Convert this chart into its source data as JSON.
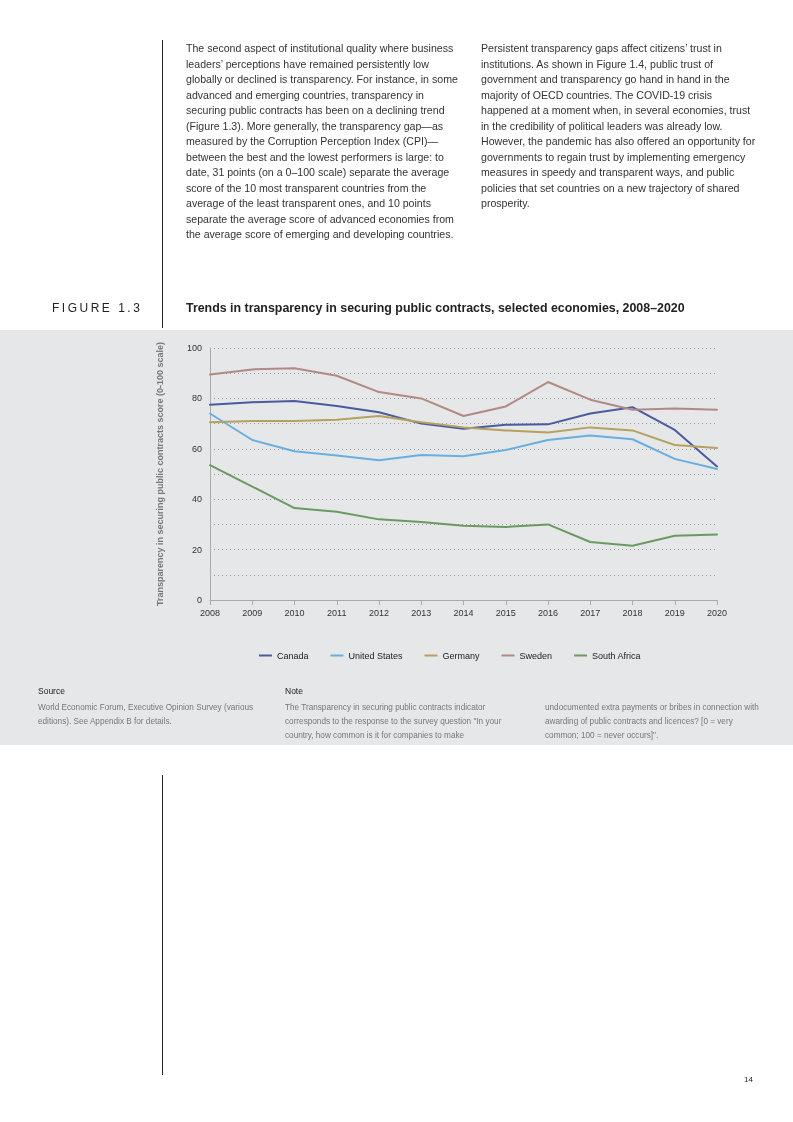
{
  "chart_data": {
    "type": "line",
    "title": "Trends in transparency in securing public contracts, selected economies, 2008–2020",
    "ylabel": "Transparency in securing public contracts score (0-100 scale)",
    "categories": [
      "2008",
      "2009",
      "2010",
      "2011",
      "2012",
      "2013",
      "2014",
      "2015",
      "2016",
      "2017",
      "2018",
      "2019",
      "2020"
    ],
    "series": [
      {
        "name": "Canada",
        "color": "#4a5a9e",
        "values": [
          77.5,
          78.5,
          79,
          77,
          74.5,
          70,
          68,
          69.5,
          69.7,
          74,
          76.5,
          67.5,
          53
        ]
      },
      {
        "name": "United States",
        "color": "#6aaee0",
        "values": [
          74,
          63.5,
          59,
          57.3,
          55.5,
          57.5,
          57,
          59.5,
          63.5,
          65.3,
          63.8,
          56,
          52
        ]
      },
      {
        "name": "Germany",
        "color": "#b5a160",
        "values": [
          70.5,
          71,
          71,
          71.5,
          73,
          70.5,
          68.5,
          67.3,
          66.5,
          68.5,
          67.3,
          61.5,
          60.3
        ]
      },
      {
        "name": "Sweden",
        "color": "#b08a84",
        "values": [
          89.5,
          91.5,
          92,
          89,
          82.5,
          80,
          73,
          76.8,
          86.5,
          79.5,
          75.5,
          76,
          75.5
        ]
      },
      {
        "name": "South Africa",
        "color": "#6a9a62",
        "values": [
          53.5,
          45,
          36.5,
          35,
          32,
          31,
          29.5,
          29,
          30,
          23,
          21.5,
          25.5,
          26
        ]
      }
    ],
    "ylim": [
      0,
      100
    ],
    "yticks": [
      0,
      {
        "value": 10,
        "label": null
      },
      20,
      {
        "value": 30,
        "label": null
      },
      40,
      {
        "value": 50,
        "label": null
      },
      60,
      {
        "value": 70,
        "label": null
      },
      80,
      {
        "value": 90,
        "label": null
      },
      100
    ],
    "grid": "y",
    "legend": "bottom",
    "marker": "none",
    "line_style": "solid",
    "annotations": [
      "The second aspect of institutional quality where business leaders’ perceptions have remained persistently low globally or declined is transparency. For instance, in some advanced and emerging countries, transparency in securing public contracts has been on a declining trend (Figure 1.3). More generally, the transparency gap—as measured by the Corruption Perception Index (CPI)—between the best and the lowest performers is large: to date, 31 points (on a 0–100 scale) separate the average score of the 10 most transparent countries from the average of the least transparent ones, and 10 points separate the average score of advanced economies from the average score of emerging and developing countries.",
      "Persistent transparency gaps affect citizens’ trust in institutions. As shown in Figure 1.4, public trust of government and transparency go hand in hand in the majority of OECD countries. The COVID-19 crisis happened at a moment when, in several economies, trust in the credibility of political leaders was already low. However, the pandemic has also offered an opportunity for governments to regain trust by implementing emergency measures in speedy and transparent ways, and public policies that set countries on a new trajectory of shared prosperity.",
      "FIGURE 1.3",
      "Source",
      "World Economic Forum, Executive Opinion Survey (various editions). See Appendix B for details.",
      "Note",
      "The Transparency in securing public contracts indicator corresponds to the response to the survey question \"In your country, how common is it for companies to make undocumented extra payments or bribes in connection with awarding of public contracts and licences? [0 = very common; 100 = never occurs]\".",
      "14"
    ]
  }
}
